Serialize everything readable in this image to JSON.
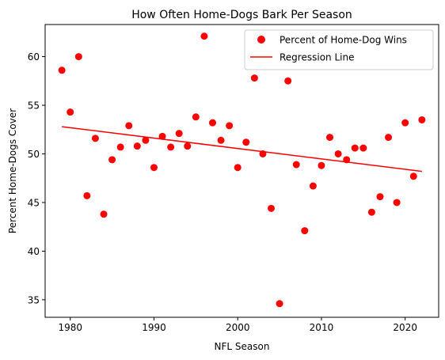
{
  "chart_data": {
    "type": "scatter",
    "title": "How Often Home-Dogs Bark Per Season",
    "xlabel": "NFL Season",
    "ylabel": "Percent Home-Dogs Cover",
    "xlim": [
      1977,
      2024
    ],
    "ylim": [
      33.2,
      63.3
    ],
    "xticks": [
      1980,
      1990,
      2000,
      2010,
      2020
    ],
    "yticks": [
      35,
      40,
      45,
      50,
      55,
      60
    ],
    "grid": false,
    "legend_position": "top-right",
    "series": [
      {
        "name": "Percent of Home-Dog Wins",
        "type": "scatter",
        "color": "#ff0000",
        "x": [
          1979,
          1980,
          1981,
          1982,
          1983,
          1984,
          1985,
          1986,
          1987,
          1988,
          1989,
          1990,
          1991,
          1992,
          1993,
          1994,
          1995,
          1996,
          1997,
          1998,
          1999,
          2000,
          2001,
          2002,
          2003,
          2004,
          2005,
          2006,
          2007,
          2008,
          2009,
          2010,
          2011,
          2012,
          2013,
          2014,
          2015,
          2016,
          2017,
          2018,
          2019,
          2020,
          2021,
          2022
        ],
        "y": [
          58.6,
          54.3,
          60.0,
          45.7,
          51.6,
          43.8,
          49.4,
          50.7,
          52.9,
          50.8,
          51.4,
          48.6,
          51.8,
          50.7,
          52.1,
          50.8,
          53.8,
          62.1,
          53.2,
          51.4,
          52.9,
          48.6,
          51.2,
          57.8,
          50.0,
          44.4,
          34.6,
          57.5,
          48.9,
          42.1,
          46.7,
          48.8,
          51.7,
          50.0,
          49.4,
          50.6,
          50.6,
          44.0,
          45.6,
          51.7,
          45.0,
          53.2,
          47.7,
          53.5
        ]
      },
      {
        "name": "Regression Line",
        "type": "line",
        "color": "#ff0000",
        "x": [
          1979,
          2022
        ],
        "y": [
          52.8,
          48.2
        ]
      }
    ]
  }
}
